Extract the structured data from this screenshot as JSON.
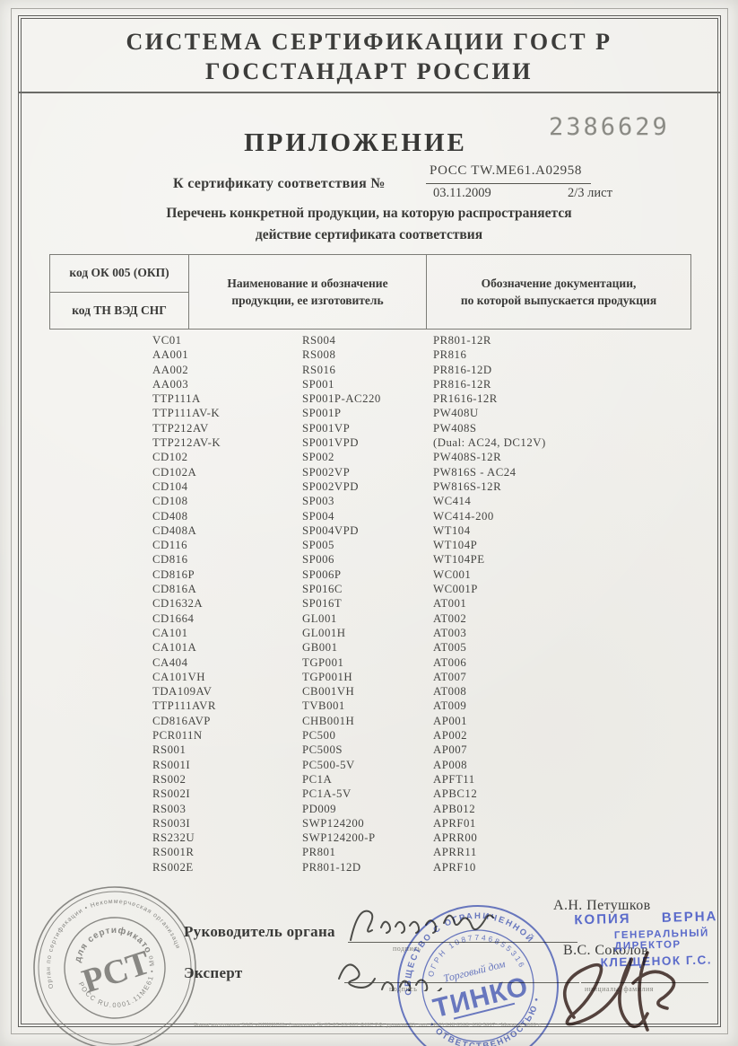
{
  "header": {
    "line1": "СИСТЕМА СЕРТИФИКАЦИИ ГОСТ Р",
    "line2": "ГОССТАНДАРТ РОССИИ"
  },
  "doc": {
    "serial_number": "2386629",
    "title": "ПРИЛОЖЕНИЕ",
    "cert_label": "К сертификату соответствия №",
    "cert_number": "РОСС TW.ME61.A02958",
    "cert_date": "03.11.2009",
    "sheet": "2/3 лист",
    "subtitle_line1": "Перечень конкретной продукции,  на которую распространяется",
    "subtitle_line2": "действие сертификата соответствия"
  },
  "table_header": {
    "col1_top": "код ОК 005 (ОКП)",
    "col1_bottom": "код ТН ВЭД СНГ",
    "col2_line1": "Наименование и обозначение",
    "col2_line2": "продукции, ее изготовитель",
    "col3_line1": "Обозначение документации,",
    "col3_line2": "по которой выпускается продукция"
  },
  "codes": {
    "column1": [
      "VC01",
      "AA001",
      "AA002",
      "AA003",
      "TTP111A",
      "TTP111AV-K",
      "TTP212AV",
      "TTP212AV-K",
      "CD102",
      "CD102A",
      "CD104",
      "CD108",
      "CD408",
      "CD408A",
      "CD116",
      "CD816",
      "CD816P",
      "CD816A",
      "CD1632A",
      "CD1664",
      "CA101",
      "CA101A",
      "CA404",
      "CA101VH",
      "TDA109AV",
      "TTP111AVR",
      "CD816AVP",
      "PCR011N",
      "RS001",
      "RS001I",
      "RS002",
      "RS002I",
      "RS003",
      "RS003I",
      "RS232U",
      "RS001R",
      "RS002E"
    ],
    "column2": [
      "RS004",
      "RS008",
      "RS016",
      "SP001",
      "SP001P-AC220",
      "SP001P",
      "SP001VP",
      "SP001VPD",
      "SP002",
      "SP002VP",
      "SP002VPD",
      "SP003",
      "SP004",
      "SP004VPD",
      "SP005",
      "SP006",
      "SP006P",
      "SP016C",
      "SP016T",
      "GL001",
      "GL001H",
      "GB001",
      "TGP001",
      "TGP001H",
      "CB001VH",
      "TVB001",
      "CHB001H",
      "PC500",
      "PC500S",
      "PC500-5V",
      "PC1A",
      "PC1A-5V",
      "PD009",
      "SWP124200",
      "SWP124200-P",
      "PR801",
      "PR801-12D"
    ],
    "column3": [
      "PR801-12R",
      "PR816",
      "PR816-12D",
      "PR816-12R",
      "PR1616-12R",
      "PW408U",
      "PW408S",
      "(Dual: AC24, DC12V)",
      "PW408S-12R",
      "PW816S - AC24",
      "PW816S-12R",
      "WC414",
      "WC414-200",
      "WT104",
      "WT104P",
      "WT104PE",
      "WC001",
      "WC001P",
      "AT001",
      "AT002",
      "AT003",
      "AT005",
      "AT006",
      "AT007",
      "AT008",
      "AT009",
      "AP001",
      "AP002",
      "AP007",
      "AP008",
      "APFT11",
      "APBC12",
      "APB012",
      "APRF01",
      "APRR00",
      "APRR11",
      "APRF10"
    ]
  },
  "footer": {
    "role1": "Руководитель органа",
    "role2": "Эксперт",
    "sign_label1": "подпись",
    "sign_label2": "подпись",
    "name_label": "инициалы, фамилия",
    "name1": "А.Н. Петушков",
    "name2": "В.С. Соколов",
    "fine_print": "Бланк изготовлен ЗАО «ОПЦИОН» (лицензия № 05-05-09/003 ФНС РФ, уровень В), тел. (495) 648 6368, 638 5617 • Москва, 2009 г."
  },
  "copy_stamp": {
    "word1": "КОПИЯ",
    "word2": "ВЕРНА",
    "line2": "ГЕНЕРАЛЬНЫЙ ДИРЕКТОР",
    "line3": "КЛЕЩЕНОК Г.С.",
    "color": "#4a5cc7"
  },
  "cert_stamp": {
    "ring_text": "Орган по сертификации • Некоммерческая организация содействия сертификации продукции и услуг «МИНТИСЕРТИФИКА»",
    "inner_ring_text": "РОСС RU.0001.11МЕ61 • Москва •",
    "center_top": "для сертификатов",
    "logo": "РСТ",
    "color": "#6e6e6a"
  },
  "org_stamp": {
    "ring_top": "ОБЩЕСТВО С ОГРАНИЧЕННОЙ",
    "ring_bottom": "• ОТВЕТСТВЕННОСТЬЮ •",
    "inner_ring": "ОГРН 1087746855316",
    "center_top": "Торговый дом",
    "center_logo": "ТИНКО",
    "color": "#5569c8"
  }
}
